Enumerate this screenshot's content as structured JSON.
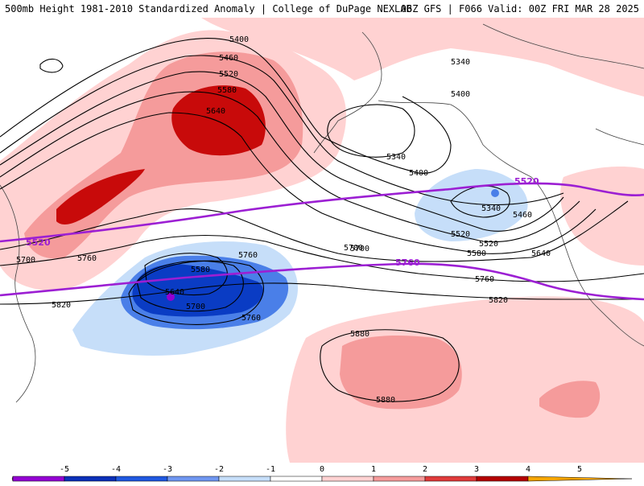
{
  "header": {
    "left_title": "500mb Height 1981-2010 Standardized Anomaly | College of DuPage NEXLAB",
    "right_title": "06Z GFS | F066 Valid: 00Z FRI MAR 28 2025"
  },
  "contour_labels": [
    "5400",
    "5460",
    "5520",
    "5580",
    "5640",
    "5340",
    "5400",
    "5340",
    "5400",
    "5520",
    "5460",
    "5340",
    "5520",
    "5580",
    "5640",
    "5700",
    "5700",
    "5760",
    "5580",
    "5640",
    "5700",
    "5760",
    "5700",
    "5760",
    "5760",
    "5820",
    "5820",
    "5880",
    "5880"
  ],
  "purple_labels": [
    "5520",
    "5520",
    "5760"
  ],
  "colorbar": {
    "ticks": [
      "-5",
      "-4",
      "-3",
      "-2",
      "-1",
      "0",
      "1",
      "2",
      "3",
      "4",
      "5"
    ],
    "colors": [
      "#ee82ee",
      "#9400d3",
      "#0a2fb8",
      "#1f58e0",
      "#6f96f0",
      "#c6def9",
      "#ffffff",
      "#ffd2d2",
      "#f59b9b",
      "#e03a3a",
      "#b40000",
      "#f5a500"
    ]
  }
}
